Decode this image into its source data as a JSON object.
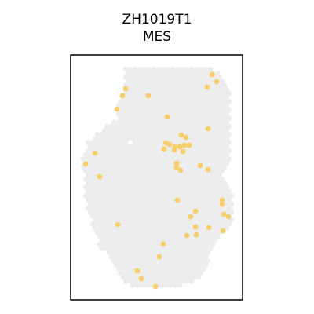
{
  "chart_data": {
    "type": "scatter",
    "title": "ZH1019T1",
    "subtitle": "MES",
    "grid": false,
    "colors": {
      "background_spot": "#ececec",
      "highlight_spot": "#f6cf6b",
      "frame": "#000000"
    },
    "series": [
      {
        "points": [
          [
            270,
            95
          ],
          [
            276,
            104
          ],
          [
            160,
            113
          ],
          [
            264,
            111
          ],
          [
            156,
            122
          ],
          [
            189,
            122
          ],
          [
            149,
            139
          ],
          [
            213,
            149
          ],
          [
            231,
            172
          ],
          [
            237,
            175
          ],
          [
            265,
            164
          ],
          [
            211,
            182
          ],
          [
            216,
            184
          ],
          [
            223,
            187
          ],
          [
            222,
            191
          ],
          [
            229,
            187
          ],
          [
            235,
            185
          ],
          [
            241,
            185
          ],
          [
            233,
            193
          ],
          [
            209,
            190
          ],
          [
            121,
            195
          ],
          [
            109,
            209
          ],
          [
            225,
            208
          ],
          [
            230,
            217
          ],
          [
            225,
            213
          ],
          [
            255,
            211
          ],
          [
            265,
            216
          ],
          [
            127,
            225
          ],
          [
            226,
            255
          ],
          [
            283,
            255
          ],
          [
            283,
            260
          ],
          [
            249,
            269
          ],
          [
            243,
            276
          ],
          [
            285,
            273
          ],
          [
            291,
            276
          ],
          [
            150,
            286
          ],
          [
            249,
            289
          ],
          [
            266,
            290
          ],
          [
            284,
            294
          ],
          [
            250,
            299
          ],
          [
            238,
            300
          ],
          [
            208,
            311
          ],
          [
            203,
            327
          ],
          [
            175,
            345
          ],
          [
            180,
            355
          ],
          [
            198,
            365
          ]
        ]
      }
    ]
  }
}
